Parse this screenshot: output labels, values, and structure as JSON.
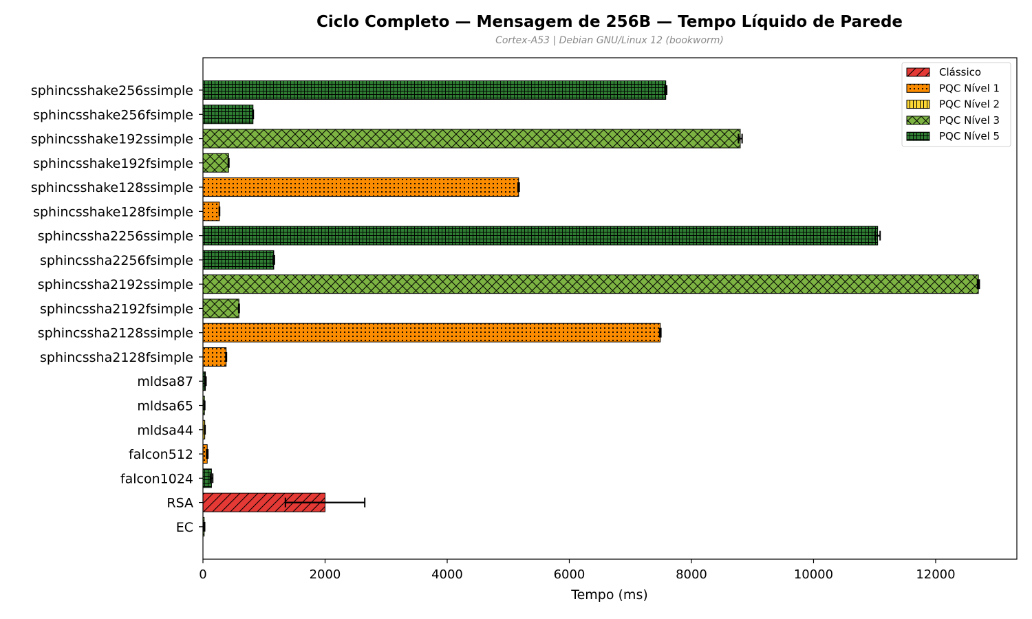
{
  "chart_data": {
    "type": "bar",
    "orientation": "horizontal",
    "title": "Ciclo Completo — Mensagem de 256B — Tempo Líquido de Parede",
    "subtitle": "Cortex-A53 | Debian GNU/Linux 12 (bookworm)",
    "xlabel": "Tempo (ms)",
    "ylabel": "",
    "xlim": [
      0,
      13330
    ],
    "xticks": [
      0,
      2000,
      4000,
      6000,
      8000,
      10000,
      12000
    ],
    "grid": false,
    "legend_position": "top-right",
    "legend": [
      {
        "name": "Clássico",
        "key": "classico"
      },
      {
        "name": "PQC Nível 1",
        "key": "n1"
      },
      {
        "name": "PQC Nível 2",
        "key": "n2"
      },
      {
        "name": "PQC Nível 3",
        "key": "n3"
      },
      {
        "name": "PQC Nível 5",
        "key": "n5"
      }
    ],
    "categories": [
      "sphincsshake256ssimple",
      "sphincsshake256fsimple",
      "sphincsshake192ssimple",
      "sphincsshake192fsimple",
      "sphincsshake128ssimple",
      "sphincsshake128fsimple",
      "sphincssha2256ssimple",
      "sphincssha2256fsimple",
      "sphincssha2192ssimple",
      "sphincssha2192fsimple",
      "sphincssha2128ssimple",
      "sphincssha2128fsimple",
      "mldsa87",
      "mldsa65",
      "mldsa44",
      "falcon512",
      "falcon1024",
      "RSA",
      "EC"
    ],
    "values": [
      7580,
      820,
      8800,
      420,
      5170,
      270,
      11050,
      1160,
      12700,
      590,
      7490,
      380,
      40,
      25,
      30,
      70,
      140,
      2000,
      20
    ],
    "errors": [
      15,
      5,
      30,
      5,
      10,
      3,
      40,
      10,
      15,
      5,
      10,
      5,
      10,
      5,
      5,
      10,
      20,
      650,
      8
    ],
    "groups": [
      "n5",
      "n5",
      "n3",
      "n3",
      "n1",
      "n1",
      "n5",
      "n5",
      "n3",
      "n3",
      "n1",
      "n1",
      "n5",
      "n3",
      "n2",
      "n1",
      "n5",
      "classico",
      "n3"
    ],
    "colors": {
      "classico": "#e53935",
      "n1": "#fb8c00",
      "n2": "#fdd835",
      "n3": "#7cb342",
      "n5": "#2e7d32"
    }
  }
}
